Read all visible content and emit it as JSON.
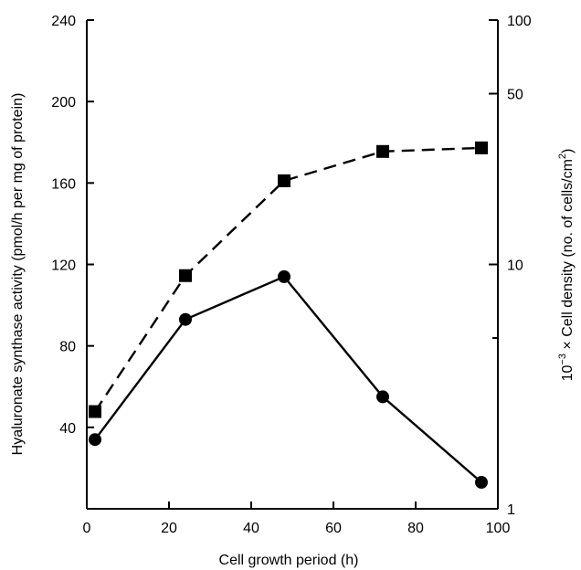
{
  "chart_data": {
    "type": "line",
    "xlabel": "Cell growth period (h)",
    "ylabel_left": "Hyaluronate synthase activity (pmol/h per mg of protein)",
    "ylabel_right_prefix": "10",
    "ylabel_right_exp": "−3",
    "ylabel_right_main": " × Cell density (no. of cells/cm",
    "ylabel_right_sup": "2",
    "ylabel_right_close": ")",
    "xlim": [
      0,
      100
    ],
    "ylim_left": [
      0,
      240
    ],
    "ylim_right": [
      1,
      100
    ],
    "right_scale": "log",
    "x_ticks": [
      {
        "value": 0,
        "label": "0"
      },
      {
        "value": 20,
        "label": "20"
      },
      {
        "value": 40,
        "label": "40"
      },
      {
        "value": 60,
        "label": "60"
      },
      {
        "value": 80,
        "label": "80"
      },
      {
        "value": 100,
        "label": "100"
      }
    ],
    "y_left_ticks": [
      {
        "value": 40,
        "label": "40"
      },
      {
        "value": 80,
        "label": "80"
      },
      {
        "value": 120,
        "label": "120"
      },
      {
        "value": 160,
        "label": "160"
      },
      {
        "value": 200,
        "label": "200"
      },
      {
        "value": 240,
        "label": "240"
      }
    ],
    "y_right_major_ticks": [
      {
        "value": 1,
        "label": "1"
      },
      {
        "value": 10,
        "label": "10"
      },
      {
        "value": 50,
        "label": "50"
      },
      {
        "value": 100,
        "label": "100"
      }
    ],
    "y_right_minor_ticks": [
      5
    ],
    "series": [
      {
        "axis": "left",
        "marker": "circle",
        "line_style": "solid",
        "x": [
          2,
          24,
          48,
          72,
          96
        ],
        "y": [
          34,
          93,
          114,
          55,
          13
        ]
      },
      {
        "axis": "right",
        "marker": "square",
        "line_style": "dashed",
        "x": [
          2,
          24,
          48,
          72,
          96
        ],
        "y": [
          2.5,
          9,
          22,
          29,
          30
        ]
      }
    ],
    "grid": false,
    "legend": "none"
  }
}
